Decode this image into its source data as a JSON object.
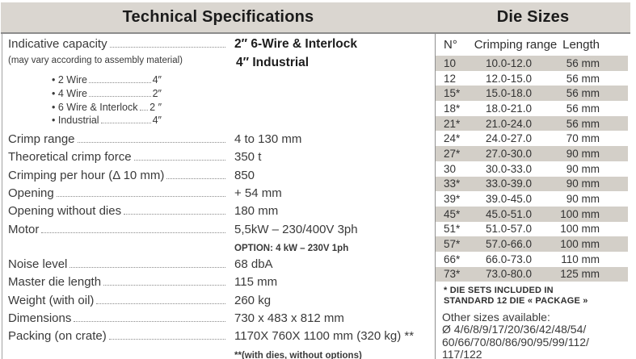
{
  "colors": {
    "band_gray": "#dad6d0",
    "stripe_gray": "#d3cfc8",
    "rule_gray": "#8c8c8c"
  },
  "technical_specifications": {
    "title": "Technical Specifications",
    "capacity": {
      "label": "Indicative capacity",
      "label_note": "(may vary according to assembly material)",
      "value_line1": "2″ 6-Wire & Interlock",
      "value_line2": "4″ Industrial",
      "bullets": [
        {
          "label": "2 Wire",
          "value": "4″"
        },
        {
          "label": "4 Wire",
          "value": "2″"
        },
        {
          "label": "6 Wire & Interlock",
          "value": "2 ″"
        },
        {
          "label": "Industrial",
          "value": "4″"
        }
      ]
    },
    "specs": [
      {
        "label": "Crimp range",
        "value": "4 to 130 mm"
      },
      {
        "label": "Theoretical crimp force",
        "value": "350 t"
      },
      {
        "label": "Crimping per hour (Δ 10 mm)",
        "value": "850"
      },
      {
        "label": "Opening",
        "value": "+ 54 mm"
      },
      {
        "label": "Opening without dies",
        "value": "180 mm"
      },
      {
        "label": "Motor",
        "value": "5,5kW – 230/400V 3ph",
        "note": "OPTION: 4 kW – 230V 1ph"
      },
      {
        "label": "Noise level",
        "value": "68 dbA"
      },
      {
        "label": "Master die length",
        "value": "115 mm"
      },
      {
        "label": "Weight (with oil)",
        "value": "260 kg"
      },
      {
        "label": "Dimensions",
        "value": "730 x 483 x 812 mm"
      },
      {
        "label": "Packing (on crate)",
        "value": "1170X 760X 1100 mm (320 kg) **",
        "note": "**(with dies, without options)"
      }
    ]
  },
  "die_sizes": {
    "title": "Die Sizes",
    "columns": [
      "N°",
      "Crimping range",
      "Length"
    ],
    "rows": [
      [
        "10",
        "10.0-12.0",
        "56 mm"
      ],
      [
        "12",
        "12.0-15.0",
        "56 mm"
      ],
      [
        "15*",
        "15.0-18.0",
        "56 mm"
      ],
      [
        "18*",
        "18.0-21.0",
        "56 mm"
      ],
      [
        "21*",
        "21.0-24.0",
        "56 mm"
      ],
      [
        "24*",
        "24.0-27.0",
        "70 mm"
      ],
      [
        "27*",
        "27.0-30.0",
        "90 mm"
      ],
      [
        "30",
        "30.0-33.0",
        "90 mm"
      ],
      [
        "33*",
        "33.0-39.0",
        "90 mm"
      ],
      [
        "39*",
        "39.0-45.0",
        "90 mm"
      ],
      [
        "45*",
        "45.0-51.0",
        "100 mm"
      ],
      [
        "51*",
        "51.0-57.0",
        "100 mm"
      ],
      [
        "57*",
        "57.0-66.0",
        "100 mm"
      ],
      [
        "66*",
        "66.0-73.0",
        "110 mm"
      ],
      [
        "73*",
        "73.0-80.0",
        "125 mm"
      ]
    ],
    "footnote_lines": [
      "* DIE SETS INCLUDED IN",
      "STANDARD 12 DIE « PACKAGE »"
    ],
    "other_sizes_title": "Other sizes available:",
    "other_sizes_lines": [
      "Ø 4/6/8/9/17/20/36/42/48/54/",
      "60/66/70/80/86/90/95/99/112/",
      "117/122"
    ]
  }
}
